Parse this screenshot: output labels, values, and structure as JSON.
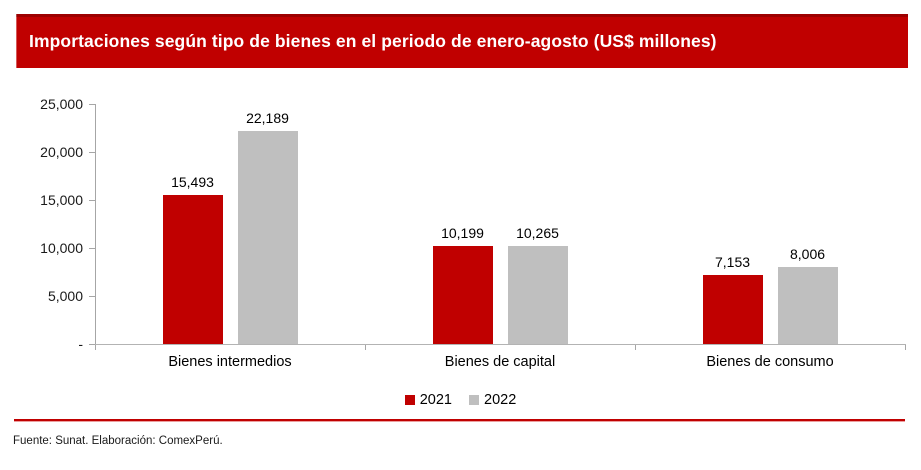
{
  "header": {
    "title": "Importaciones según tipo de bienes en el periodo de enero-agosto (US$ millones)",
    "background_color": "#C00000",
    "text_color": "#FFFFFF"
  },
  "chart_data": {
    "type": "bar",
    "title": "Importaciones según tipo de bienes en el periodo de enero-agosto (US$ millones)",
    "categories": [
      "Bienes intermedios",
      "Bienes de capital",
      "Bienes de consumo"
    ],
    "series": [
      {
        "name": "2021",
        "color": "#C00000",
        "values": [
          15493,
          10199,
          7153
        ],
        "labels": [
          "15,493",
          "10,199",
          "7,153"
        ]
      },
      {
        "name": "2022",
        "color": "#BFBFBF",
        "values": [
          22189,
          10265,
          8006
        ],
        "labels": [
          "22,189",
          "10,265",
          "8,006"
        ]
      }
    ],
    "ylim": [
      0,
      25000
    ],
    "yticks": [
      {
        "value": 0,
        "label": "-"
      },
      {
        "value": 5000,
        "label": "5,000"
      },
      {
        "value": 10000,
        "label": "10,000"
      },
      {
        "value": 15000,
        "label": "15,000"
      },
      {
        "value": 20000,
        "label": "20,000"
      },
      {
        "value": 25000,
        "label": "25,000"
      }
    ],
    "grid": false,
    "legend_position": "bottom",
    "axis_color": "#A6A6A6"
  },
  "footer": {
    "source_text": "Fuente: Sunat. Elaboración: ComexPerú.",
    "separator_color": "#C00000",
    "separator_highlight": "#EC9F9F"
  }
}
